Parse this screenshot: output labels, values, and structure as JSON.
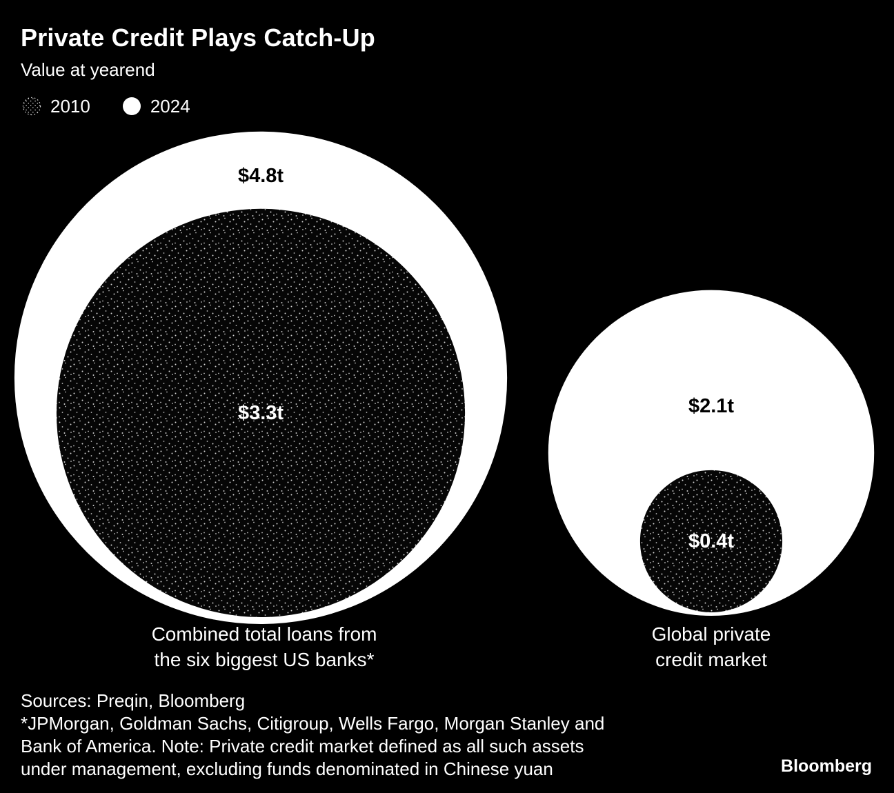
{
  "title": "Private Credit Plays Catch-Up",
  "subtitle": "Value at yearend",
  "legend": [
    {
      "label": "2010",
      "swatch": "stippled-black-circle"
    },
    {
      "label": "2024",
      "swatch": "solid-white-circle"
    }
  ],
  "colors": {
    "background": "#000000",
    "text": "#ffffff",
    "bubble_2024": "#ffffff",
    "bubble_2010": "#060606",
    "stipple_dots": "#cccccc"
  },
  "chart_data": {
    "type": "nested-bubble",
    "title": "Private Credit Plays Catch-Up",
    "subtitle": "Value at yearend",
    "unit": "USD trillions",
    "legend_position": "top-left",
    "years": [
      "2010",
      "2024"
    ],
    "groups": [
      {
        "id": "us-banks-loans",
        "label_lines": [
          "Combined total loans from",
          "the six biggest US banks*"
        ],
        "values": {
          "2010": 3.3,
          "2024": 4.8
        },
        "value_labels": {
          "2010": "$3.3t",
          "2024": "$4.8t"
        }
      },
      {
        "id": "global-private-credit",
        "label_lines": [
          "Global private",
          "credit market"
        ],
        "values": {
          "2010": 0.4,
          "2024": 2.1
        },
        "value_labels": {
          "2010": "$0.4t",
          "2024": "$2.1t"
        }
      }
    ]
  },
  "footer": {
    "sources": "Sources: Preqin, Bloomberg",
    "note_lines": [
      "*JPMorgan, Goldman Sachs, Citigroup, Wells Fargo, Morgan Stanley and",
      "Bank of America. Note: Private credit market defined as all such assets",
      "under management, excluding funds denominated in Chinese yuan"
    ],
    "brand": "Bloomberg"
  }
}
